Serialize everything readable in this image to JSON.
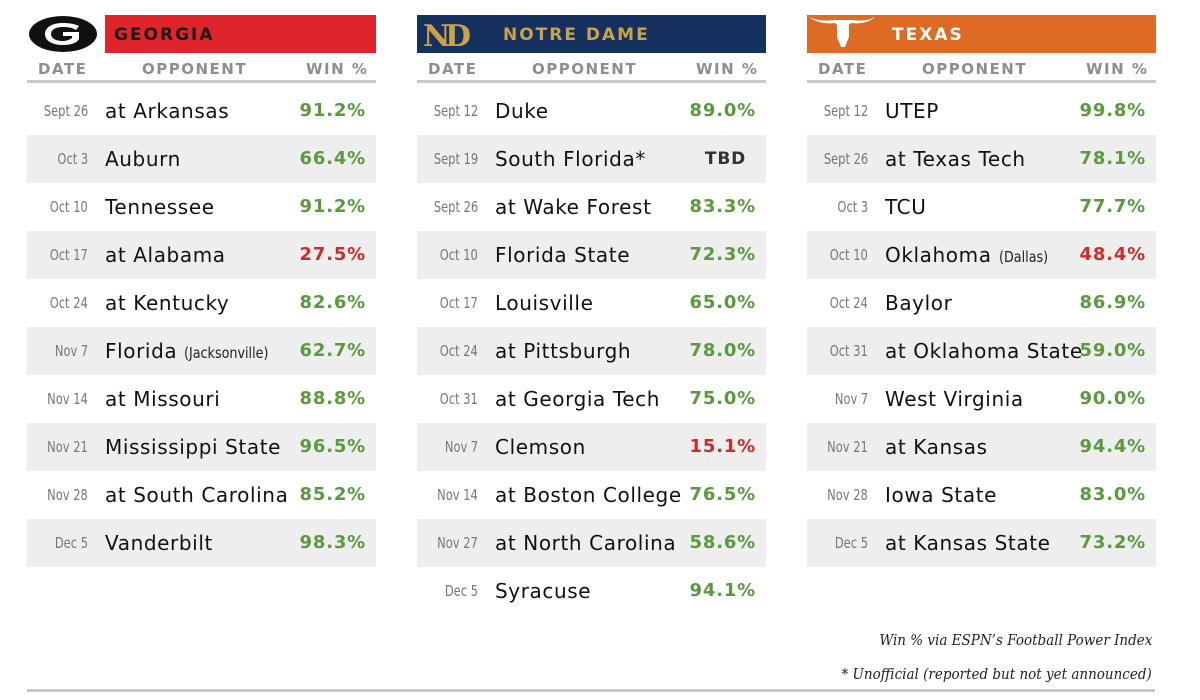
{
  "teams": [
    {
      "name": "GEORGIA",
      "header_color": "#e0242b",
      "name_color": "#1a1a1a",
      "logo": "georgia-g-logo",
      "columns": {
        "date": "DATE",
        "opponent": "OPPONENT",
        "win": "WIN %"
      },
      "games": [
        {
          "date": "Sept 26",
          "opponent": "at Arkansas",
          "note": "",
          "win": "91.2%",
          "status": "good"
        },
        {
          "date": "Oct 3",
          "opponent": "Auburn",
          "note": "",
          "win": "66.4%",
          "status": "good"
        },
        {
          "date": "Oct 10",
          "opponent": "Tennessee",
          "note": "",
          "win": "91.2%",
          "status": "good"
        },
        {
          "date": "Oct 17",
          "opponent": "at Alabama",
          "note": "",
          "win": "27.5%",
          "status": "bad"
        },
        {
          "date": "Oct 24",
          "opponent": "at Kentucky",
          "note": "",
          "win": "82.6%",
          "status": "good"
        },
        {
          "date": "Nov 7",
          "opponent": "Florida",
          "note": "(Jacksonville)",
          "win": "62.7%",
          "status": "good"
        },
        {
          "date": "Nov 14",
          "opponent": "at Missouri",
          "note": "",
          "win": "88.8%",
          "status": "good"
        },
        {
          "date": "Nov 21",
          "opponent": "Mississippi State",
          "note": "",
          "win": "96.5%",
          "status": "good"
        },
        {
          "date": "Nov 28",
          "opponent": "at South Carolina",
          "note": "",
          "win": "85.2%",
          "status": "good"
        },
        {
          "date": "Dec 5",
          "opponent": "Vanderbilt",
          "note": "",
          "win": "98.3%",
          "status": "good"
        }
      ]
    },
    {
      "name": "NOTRE DAME",
      "header_color": "#16305f",
      "name_color": "#c9a24a",
      "logo": "notre-dame-nd-logo",
      "columns": {
        "date": "DATE",
        "opponent": "OPPONENT",
        "win": "WIN %"
      },
      "games": [
        {
          "date": "Sept 12",
          "opponent": "Duke",
          "note": "",
          "win": "89.0%",
          "status": "good"
        },
        {
          "date": "Sept 19",
          "opponent": "South Florida*",
          "note": "",
          "win": "TBD",
          "status": "tbd"
        },
        {
          "date": "Sept 26",
          "opponent": "at Wake Forest",
          "note": "",
          "win": "83.3%",
          "status": "good"
        },
        {
          "date": "Oct 10",
          "opponent": "Florida State",
          "note": "",
          "win": "72.3%",
          "status": "good"
        },
        {
          "date": "Oct 17",
          "opponent": "Louisville",
          "note": "",
          "win": "65.0%",
          "status": "good"
        },
        {
          "date": "Oct 24",
          "opponent": "at Pittsburgh",
          "note": "",
          "win": "78.0%",
          "status": "good"
        },
        {
          "date": "Oct 31",
          "opponent": "at Georgia Tech",
          "note": "",
          "win": "75.0%",
          "status": "good"
        },
        {
          "date": "Nov 7",
          "opponent": "Clemson",
          "note": "",
          "win": "15.1%",
          "status": "bad"
        },
        {
          "date": "Nov 14",
          "opponent": "at Boston College",
          "note": "",
          "win": "76.5%",
          "status": "good"
        },
        {
          "date": "Nov 27",
          "opponent": "at North Carolina",
          "note": "",
          "win": "58.6%",
          "status": "good"
        },
        {
          "date": "Dec 5",
          "opponent": "Syracuse",
          "note": "",
          "win": "94.1%",
          "status": "good"
        }
      ]
    },
    {
      "name": "TEXAS",
      "header_color": "#dd6a25",
      "name_color": "#ffffff",
      "logo": "texas-longhorn-logo",
      "columns": {
        "date": "DATE",
        "opponent": "OPPONENT",
        "win": "WIN %"
      },
      "games": [
        {
          "date": "Sept 12",
          "opponent": "UTEP",
          "note": "",
          "win": "99.8%",
          "status": "good"
        },
        {
          "date": "Sept 26",
          "opponent": "at Texas Tech",
          "note": "",
          "win": "78.1%",
          "status": "good"
        },
        {
          "date": "Oct 3",
          "opponent": "TCU",
          "note": "",
          "win": "77.7%",
          "status": "good"
        },
        {
          "date": "Oct 10",
          "opponent": "Oklahoma",
          "note": "(Dallas)",
          "win": "48.4%",
          "status": "bad"
        },
        {
          "date": "Oct 24",
          "opponent": "Baylor",
          "note": "",
          "win": "86.9%",
          "status": "good"
        },
        {
          "date": "Oct 31",
          "opponent": "at Oklahoma State",
          "note": "",
          "win": "59.0%",
          "status": "good"
        },
        {
          "date": "Nov 7",
          "opponent": "West Virginia",
          "note": "",
          "win": "90.0%",
          "status": "good"
        },
        {
          "date": "Nov 21",
          "opponent": "at Kansas",
          "note": "",
          "win": "94.4%",
          "status": "good"
        },
        {
          "date": "Nov 28",
          "opponent": "Iowa State",
          "note": "",
          "win": "83.0%",
          "status": "good"
        },
        {
          "date": "Dec 5",
          "opponent": "at Kansas State",
          "note": "",
          "win": "73.2%",
          "status": "good"
        }
      ]
    }
  ],
  "footnotes": {
    "source": "Win % via ESPN’s Football Power Index",
    "unofficial": "* Unofficial (reported but not yet announced)"
  }
}
